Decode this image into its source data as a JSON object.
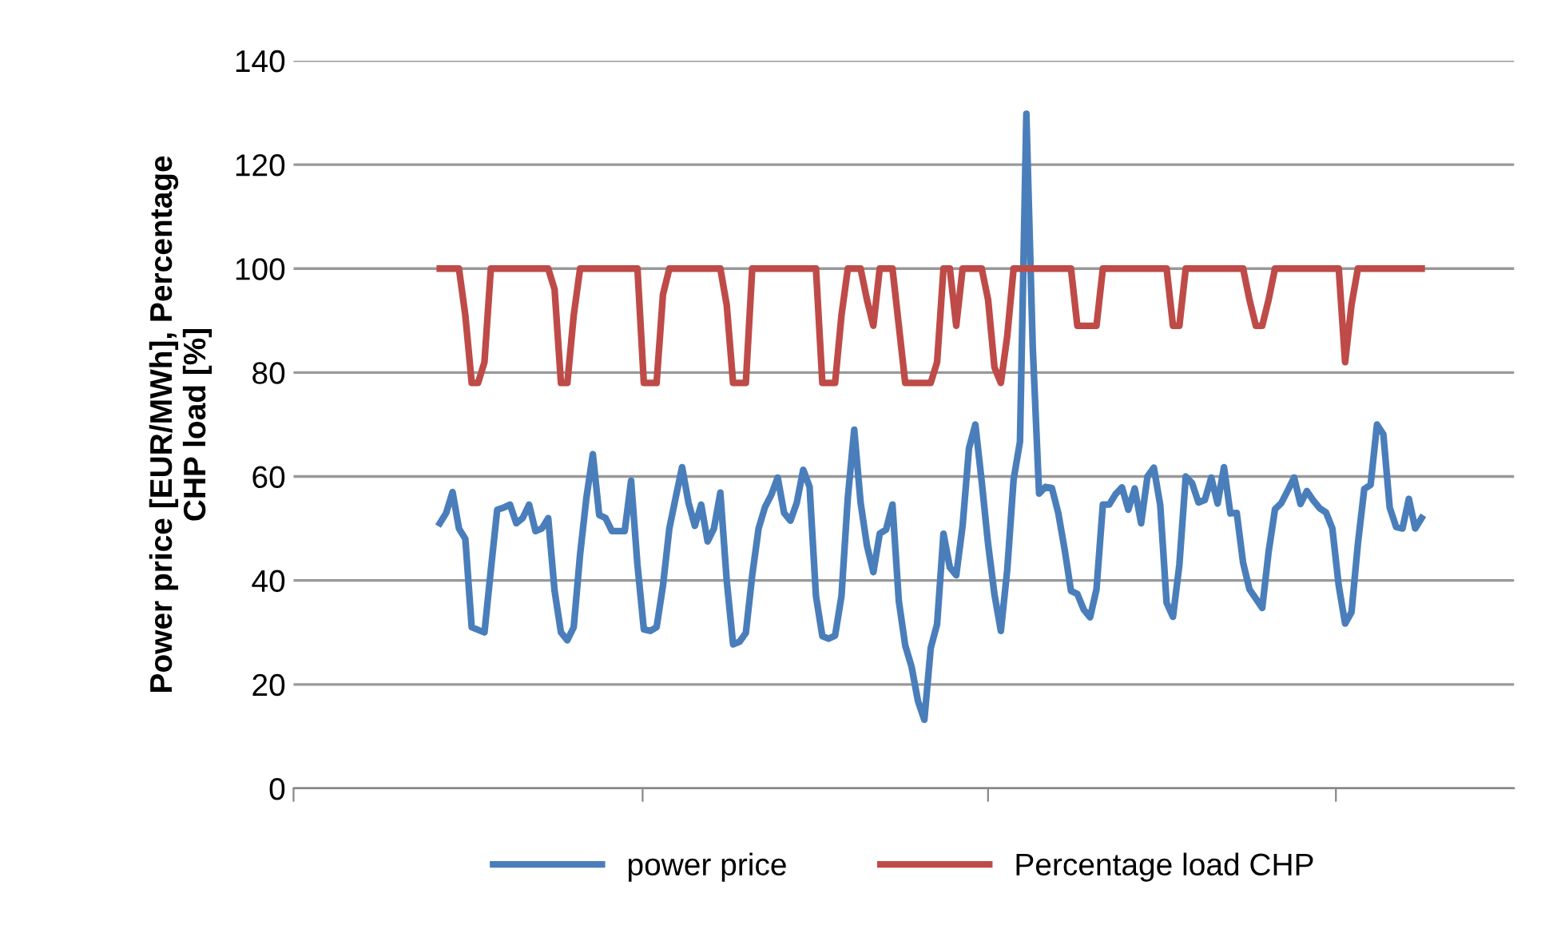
{
  "chart_data": {
    "type": "line",
    "ylabel": "Power price [EUR/MWh], Percentage\nCHP load [%]",
    "categories": [
      null,
      null,
      null,
      null,
      null,
      null,
      null,
      null,
      null,
      null,
      null,
      null,
      null,
      null,
      null,
      null,
      null,
      null,
      null,
      null,
      null,
      null,
      null,
      null,
      null,
      null,
      null,
      null,
      null,
      null,
      null,
      null,
      null,
      null,
      null,
      null,
      null,
      null,
      null,
      null,
      null,
      null,
      null,
      null,
      null,
      null,
      null,
      null,
      null,
      null,
      null,
      null,
      null,
      null,
      null,
      null,
      null,
      null,
      null,
      null,
      null,
      null,
      null,
      null,
      null,
      null,
      null,
      null,
      null,
      null,
      null,
      null,
      null,
      null,
      null,
      null,
      null,
      null,
      null,
      null,
      null,
      null,
      null,
      null,
      null,
      null,
      null,
      null,
      null,
      null,
      null,
      null,
      null,
      null,
      null,
      null,
      null,
      null,
      null,
      null,
      null,
      null,
      null,
      null,
      null,
      null,
      null,
      null,
      null,
      null,
      null,
      null,
      null,
      null,
      null,
      null,
      null,
      null,
      null,
      null,
      null,
      null,
      null,
      null,
      null,
      null,
      null,
      null,
      null,
      null,
      null,
      null,
      null,
      null,
      null,
      null,
      null,
      null,
      null,
      null,
      null,
      null,
      null,
      null,
      null,
      null,
      null,
      null,
      null,
      null,
      null,
      null,
      null,
      null,
      null
    ],
    "ylim": [
      0,
      140
    ],
    "yticks": [
      0,
      20,
      40,
      60,
      80,
      100,
      120,
      140
    ],
    "tick_labels": "y",
    "grid": "y",
    "legend": "bottom",
    "marker": "none",
    "line_style": "solid",
    "series": [
      {
        "name": "power price",
        "color": "#4a7ebb",
        "values": [
          51,
          53,
          57,
          50,
          48,
          31,
          30.5,
          30,
          42,
          53.6,
          54,
          54.6,
          51,
          52,
          54.6,
          49.5,
          50,
          52,
          38,
          30,
          28.5,
          31,
          45,
          56,
          64.3,
          52.6,
          52,
          49.5,
          49.5,
          49.5,
          59.2,
          43,
          30.6,
          30.3,
          31,
          39,
          50,
          56,
          61.8,
          55,
          50.5,
          54.6,
          47.5,
          50,
          56.9,
          40,
          27.7,
          28.2,
          29.9,
          41,
          50,
          54.1,
          56.5,
          59.8,
          53,
          51.5,
          55,
          61.3,
          58,
          37,
          29.3,
          28.8,
          29.4,
          37,
          56,
          69,
          55,
          46.7,
          41.6,
          49,
          49.8,
          54.6,
          36,
          27.5,
          23.4,
          16.8,
          13.2,
          27,
          31.6,
          49,
          42.5,
          41,
          50.5,
          65.4,
          70,
          59,
          47,
          37.3,
          30.3,
          42,
          59.4,
          66.7,
          129.8,
          85,
          56.7,
          58,
          57.8,
          53,
          46,
          38,
          37.4,
          34.4,
          32.9,
          38.3,
          54.6,
          54.6,
          56.6,
          57.9,
          53.6,
          57.7,
          51,
          60,
          61.7,
          54.5,
          35.7,
          33,
          43,
          60,
          58.7,
          55,
          55.5,
          59.8,
          54.8,
          61.8,
          52.9,
          53,
          43.4,
          38.3,
          36.5,
          34.7,
          45.5,
          53.7,
          54.9,
          57.3,
          59.8,
          54.7,
          57.2,
          55.4,
          53.9,
          53.1,
          50,
          39,
          31.7,
          33.9,
          47,
          57.6,
          58.4,
          70,
          68.1,
          54,
          50.3,
          50,
          55.7,
          50,
          52
        ]
      },
      {
        "name": "Percentage load CHP",
        "color": "#be4b48",
        "values": [
          100,
          100,
          100,
          100,
          91,
          78,
          78,
          82,
          100,
          100,
          100,
          100,
          100,
          100,
          100,
          100,
          100,
          100,
          96,
          78,
          78,
          91,
          100,
          100,
          100,
          100,
          100,
          100,
          100,
          100,
          100,
          100,
          78,
          78,
          78,
          95,
          100,
          100,
          100,
          100,
          100,
          100,
          100,
          100,
          100,
          93,
          78,
          78,
          78,
          100,
          100,
          100,
          100,
          100,
          100,
          100,
          100,
          100,
          100,
          100,
          78,
          78,
          78,
          91,
          100,
          100,
          100,
          94,
          89,
          100,
          100,
          100,
          89,
          78,
          78,
          78,
          78,
          78,
          82,
          100,
          100,
          89,
          100,
          100,
          100,
          100,
          94,
          81,
          78,
          87,
          100,
          100,
          100,
          100,
          100,
          100,
          100,
          100,
          100,
          100,
          89,
          89,
          89,
          89,
          100,
          100,
          100,
          100,
          100,
          100,
          100,
          100,
          100,
          100,
          100,
          89,
          89,
          100,
          100,
          100,
          100,
          100,
          100,
          100,
          100,
          100,
          100,
          94,
          89,
          89,
          94,
          100,
          100,
          100,
          100,
          100,
          100,
          100,
          100,
          100,
          100,
          100,
          82,
          93,
          100,
          100,
          100,
          100,
          100,
          100,
          100,
          100,
          100,
          100,
          100
        ]
      }
    ]
  }
}
